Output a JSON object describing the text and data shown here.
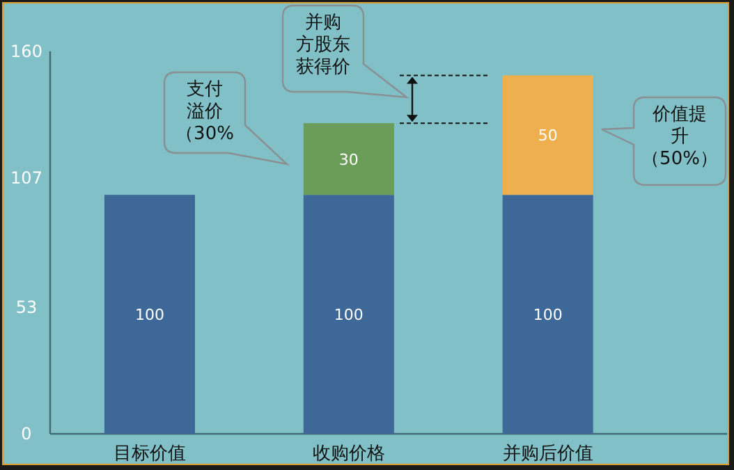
{
  "chart_data": {
    "type": "bar",
    "stacked": true,
    "data_labels": true,
    "grid": false,
    "categories": [
      "目标价值",
      "收购价格",
      "并购后价值"
    ],
    "series": [
      {
        "color": "#3d6898",
        "values": [
          100,
          100,
          100
        ]
      },
      {
        "color": "#6a9e58",
        "values": [
          null,
          30,
          null
        ]
      },
      {
        "color": "#eeb04e",
        "values": [
          null,
          null,
          50
        ]
      }
    ],
    "ylim": [
      0,
      160
    ],
    "yticks": [
      0,
      53,
      107,
      160
    ],
    "annotations": [
      "支付溢价（30%",
      "并购方股东获得价",
      "价值提升（50%）"
    ]
  }
}
